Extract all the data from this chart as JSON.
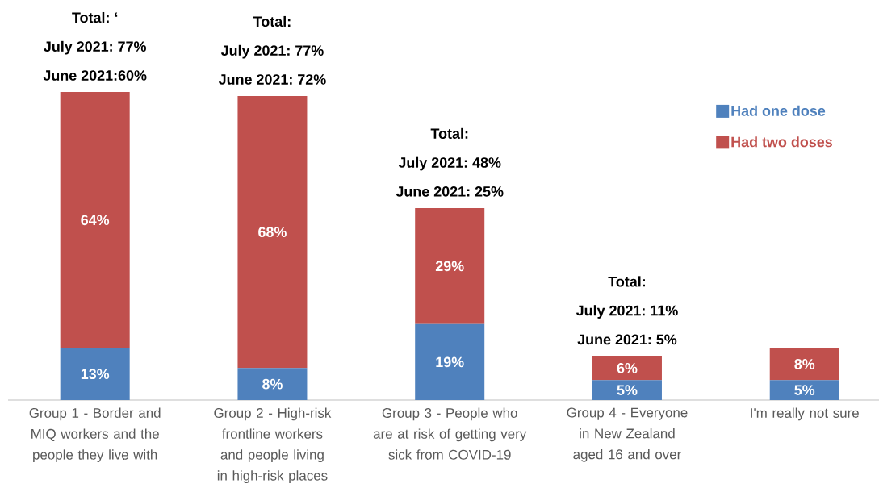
{
  "chart_data": {
    "type": "bar",
    "stacked": true,
    "categories": [
      "Group 1 - Border and MIQ workers and the people they live with",
      "Group 2 - High-risk frontline workers and people living in high-risk places",
      "Group 3 - People who are at risk of getting very sick from COVID-19",
      "Group 4 - Everyone in New Zealand aged 16 and over",
      "I'm really not sure"
    ],
    "series": [
      {
        "name": "Had one dose",
        "color": "#4f81bd",
        "values": [
          13,
          8,
          19,
          5,
          5
        ],
        "value_labels": [
          "13%",
          "8%",
          "19%",
          "5%",
          "5%"
        ]
      },
      {
        "name": "Had two doses",
        "color": "#c0504d",
        "values": [
          64,
          68,
          29,
          6,
          8
        ],
        "value_labels": [
          "64%",
          "68%",
          "29%",
          "6%",
          "8%"
        ]
      }
    ],
    "tick_labels": "x",
    "legend": "right",
    "annotations": [
      "Total: ‘",
      "July 2021: 77%",
      "June 2021:60%",
      "Total:",
      "July 2021: 77%",
      "June 2021: 72%",
      "Total:",
      "July 2021: 48%",
      "June 2021: 25%",
      "Total:",
      "July 2021: 11%",
      "June 2021: 5%"
    ]
  }
}
